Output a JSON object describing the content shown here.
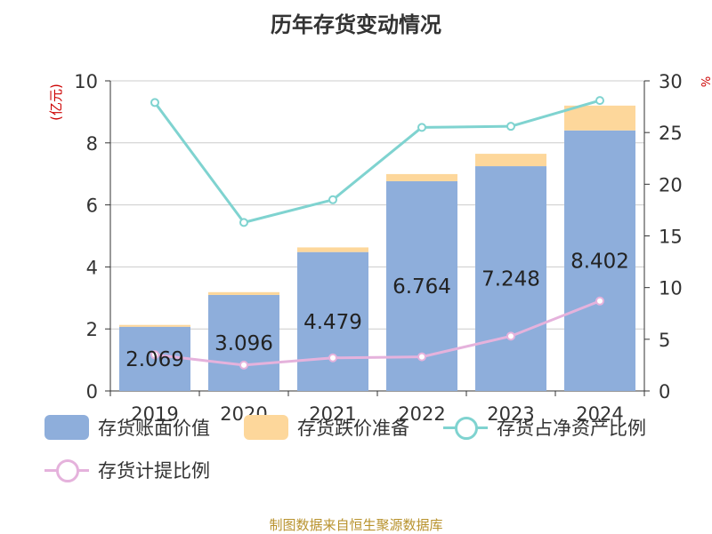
{
  "title": "历年存货变动情况",
  "source": "制图数据来自恒生聚源数据库",
  "colors": {
    "bar_main": "#8eaedb",
    "bar_top": "#fdd79b",
    "line_ratio": "#7fd3d0",
    "line_provision": "#e5b2dc",
    "axis": "#333333",
    "grid": "#cccccc",
    "unit": "#cc0000"
  },
  "chart_data": {
    "type": "bar",
    "categories": [
      "2019",
      "2020",
      "2021",
      "2022",
      "2023",
      "2024"
    ],
    "y_left": {
      "label": "(亿元)",
      "range": [
        0,
        10
      ],
      "ticks": [
        0,
        2,
        4,
        6,
        8,
        10
      ]
    },
    "y_right": {
      "label": "%",
      "range": [
        0,
        30
      ],
      "ticks": [
        0,
        5,
        10,
        15,
        20,
        25,
        30
      ]
    },
    "series": [
      {
        "name": "存货账面价值",
        "type": "bar",
        "axis": "left",
        "stack": "a",
        "values": [
          2.069,
          3.096,
          4.479,
          6.764,
          7.248,
          8.402
        ],
        "data_labels": [
          "2.069",
          "3.096",
          "4.479",
          "6.764",
          "7.248",
          "8.402"
        ]
      },
      {
        "name": "存货跌价准备",
        "type": "bar",
        "axis": "left",
        "stack": "a",
        "values": [
          0.06,
          0.09,
          0.15,
          0.23,
          0.4,
          0.8
        ]
      },
      {
        "name": "存货占净资产比例",
        "type": "line",
        "axis": "right",
        "values": [
          27.9,
          16.3,
          18.5,
          25.5,
          25.6,
          28.1
        ]
      },
      {
        "name": "存货计提比例",
        "type": "line",
        "axis": "right",
        "values": [
          3.5,
          2.5,
          3.2,
          3.3,
          5.3,
          8.7
        ]
      }
    ],
    "grid": true,
    "legend_position": "bottom"
  }
}
